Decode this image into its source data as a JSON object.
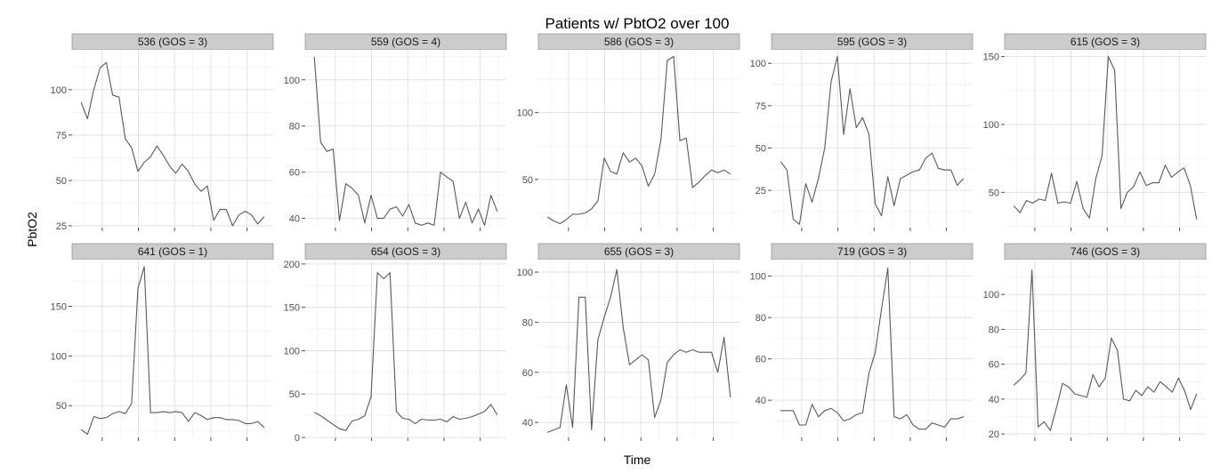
{
  "colors": {
    "panel_bg": "#ffffff",
    "grid_major": "#dcdcdc",
    "grid_minor": "#eeeeee",
    "strip_bg": "#cccccc",
    "strip_border": "#7f7f7f",
    "line": "#595959",
    "axis_tick": "#4d4d4d"
  },
  "chart_data": {
    "type": "line",
    "title": "Patients w/ PbtO2 over 100",
    "xlabel": "Time",
    "ylabel": "PbtO2",
    "grid": true,
    "x_axis_tick_labels_shown": false,
    "panels": [
      {
        "label": "536 (GOS = 3)",
        "ylim": [
          24,
          122
        ],
        "yticks": [
          25,
          50,
          75,
          100
        ],
        "values": [
          93,
          84,
          100,
          112,
          115,
          97,
          96,
          73,
          68,
          55,
          60,
          63,
          69,
          64,
          58,
          54,
          59,
          55,
          48,
          44,
          47,
          28,
          34,
          34,
          25,
          31,
          33,
          31,
          26,
          30
        ]
      },
      {
        "label": "559 (GOS = 4)",
        "ylim": [
          36,
          113
        ],
        "yticks": [
          40,
          60,
          80,
          100
        ],
        "values": [
          110,
          73,
          69,
          70,
          39,
          55,
          53,
          50,
          38,
          50,
          40,
          40,
          44,
          45,
          41,
          46,
          38,
          37,
          38,
          37,
          60,
          58,
          56,
          40,
          47,
          38,
          44,
          37,
          50,
          43
        ]
      },
      {
        "label": "586 (GOS = 3)",
        "ylim": [
          14,
          147
        ],
        "yticks": [
          50,
          100
        ],
        "values": [
          22,
          19,
          17,
          20,
          24,
          24,
          25,
          28,
          34,
          66,
          56,
          54,
          70,
          63,
          66,
          60,
          45,
          54,
          80,
          139,
          142,
          79,
          81,
          44,
          48,
          53,
          57,
          55,
          57,
          54
        ]
      },
      {
        "label": "595 (GOS = 3)",
        "ylim": [
          3,
          108
        ],
        "yticks": [
          25,
          50,
          75,
          100
        ],
        "values": [
          42,
          37,
          8,
          5,
          29,
          18,
          32,
          50,
          89,
          104,
          58,
          85,
          62,
          68,
          58,
          17,
          10,
          33,
          16,
          32,
          34,
          36,
          37,
          44,
          47,
          38,
          37,
          37,
          28,
          32
        ]
      },
      {
        "label": "615 (GOS = 3)",
        "ylim": [
          24,
          155
        ],
        "yticks": [
          50,
          100,
          150
        ],
        "values": [
          40,
          35,
          44,
          42,
          45,
          44,
          64,
          42,
          43,
          42,
          58,
          38,
          31,
          60,
          77,
          150,
          140,
          38,
          50,
          54,
          65,
          55,
          57,
          57,
          70,
          61,
          65,
          68,
          55,
          30
        ]
      },
      {
        "label": "641 (GOS = 1)",
        "ylim": [
          18,
          197
        ],
        "yticks": [
          50,
          100,
          150
        ],
        "values": [
          26,
          21,
          39,
          37,
          38,
          42,
          44,
          42,
          52,
          168,
          190,
          43,
          43,
          44,
          43,
          44,
          43,
          34,
          43,
          40,
          36,
          38,
          38,
          36,
          36,
          35,
          32,
          32,
          34,
          28
        ]
      },
      {
        "label": "654 (GOS = 3)",
        "ylim": [
          0,
          205
        ],
        "yticks": [
          0,
          50,
          100,
          150,
          200
        ],
        "values": [
          29,
          25,
          20,
          15,
          10,
          8,
          19,
          21,
          25,
          47,
          190,
          183,
          190,
          30,
          22,
          21,
          16,
          21,
          20,
          20,
          21,
          18,
          24,
          21,
          22,
          24,
          27,
          30,
          38,
          26
        ]
      },
      {
        "label": "655 (GOS = 3)",
        "ylim": [
          34,
          105
        ],
        "yticks": [
          40,
          60,
          80,
          100
        ],
        "values": [
          36,
          37,
          38,
          55,
          38,
          90,
          90,
          37,
          73,
          82,
          90,
          101,
          78,
          63,
          65,
          67,
          65,
          42,
          49,
          64,
          67,
          69,
          68,
          69,
          68,
          68,
          68,
          60,
          74,
          50
        ]
      },
      {
        "label": "719 (GOS = 3)",
        "ylim": [
          22,
          108
        ],
        "yticks": [
          40,
          60,
          80,
          100
        ],
        "values": [
          35,
          35,
          35,
          28,
          28,
          38,
          32,
          35,
          36,
          34,
          30,
          31,
          33,
          34,
          53,
          63,
          84,
          104,
          32,
          31,
          33,
          28,
          26,
          26,
          29,
          28,
          27,
          31,
          31,
          32
        ]
      },
      {
        "label": "746 (GOS = 3)",
        "ylim": [
          18,
          120
        ],
        "yticks": [
          20,
          40,
          60,
          80,
          100
        ],
        "values": [
          48,
          51,
          55,
          114,
          24,
          27,
          22,
          35,
          49,
          47,
          43,
          42,
          41,
          54,
          47,
          52,
          75,
          68,
          40,
          39,
          45,
          42,
          47,
          44,
          50,
          47,
          44,
          52,
          45,
          34,
          43
        ]
      }
    ]
  }
}
